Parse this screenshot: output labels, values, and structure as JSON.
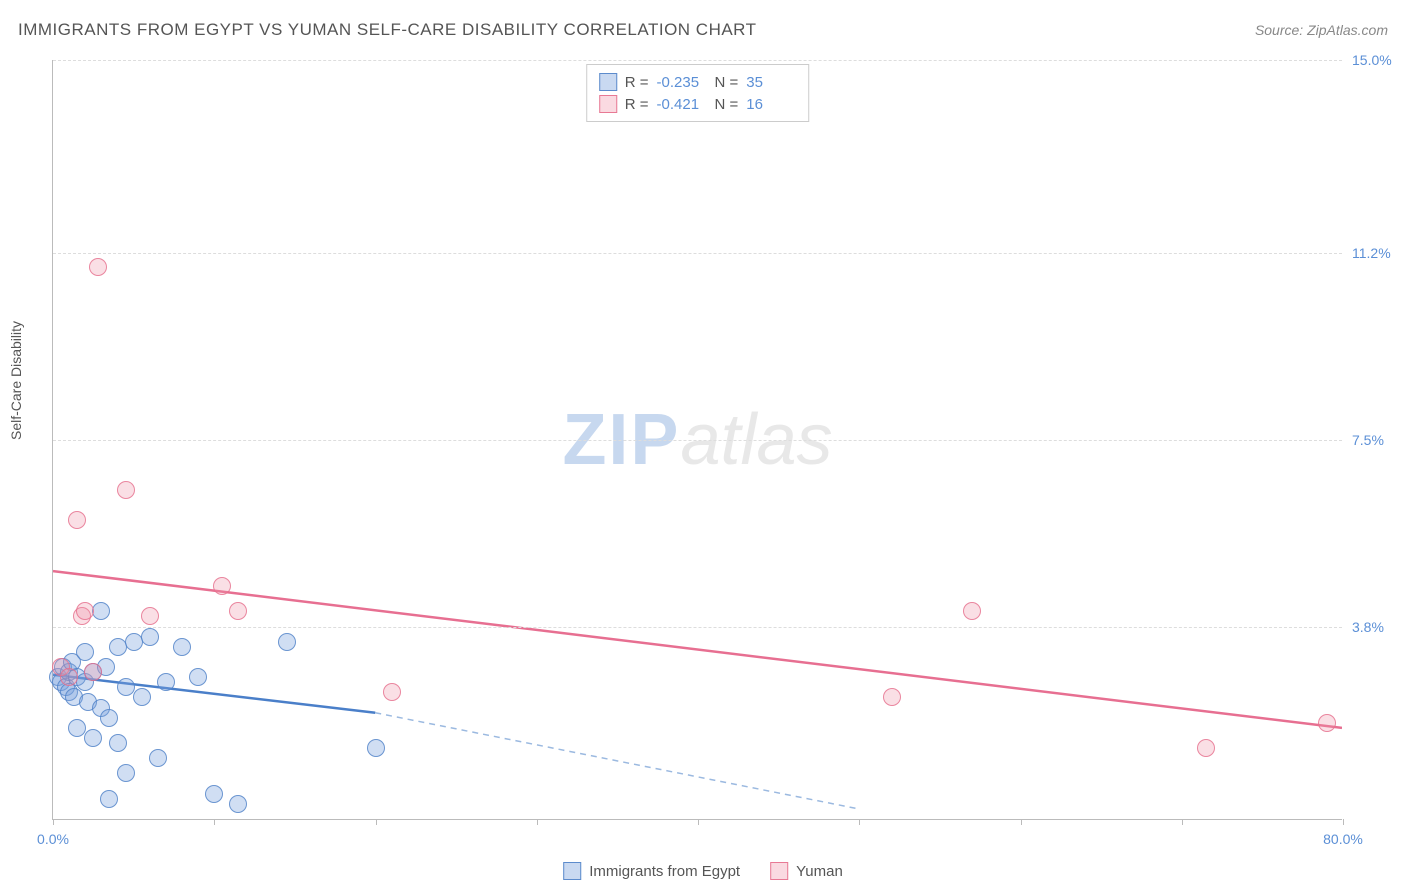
{
  "title": "IMMIGRANTS FROM EGYPT VS YUMAN SELF-CARE DISABILITY CORRELATION CHART",
  "source_label": "Source: ",
  "source_name": "ZipAtlas.com",
  "watermark_zip": "ZIP",
  "watermark_atlas": "atlas",
  "chart": {
    "type": "scatter",
    "ylabel": "Self-Care Disability",
    "xlim": [
      0,
      80
    ],
    "ylim": [
      0,
      15
    ],
    "x_tick_positions": [
      0,
      10,
      20,
      30,
      40,
      50,
      60,
      70,
      80
    ],
    "x_tick_labels_shown": {
      "0": "0.0%",
      "80": "80.0%"
    },
    "y_gridlines": [
      3.8,
      7.5,
      11.2,
      15.0
    ],
    "y_tick_labels": [
      "3.8%",
      "7.5%",
      "11.2%",
      "15.0%"
    ],
    "background_color": "#ffffff",
    "grid_color": "#dddddd",
    "axis_color": "#bbbbbb",
    "tick_label_color": "#5b8fd6",
    "marker_radius": 9,
    "series": [
      {
        "name": "Immigrants from Egypt",
        "color_fill": "rgba(120,160,220,0.35)",
        "color_stroke": "rgba(80,130,200,0.8)",
        "R": "-0.235",
        "N": "35",
        "trend": {
          "x1": 0,
          "y1": 2.85,
          "x2": 20,
          "y2": 2.1,
          "stroke": "#4a7fc9",
          "width": 2.5,
          "dash": "none",
          "ext_x2": 50,
          "ext_y2": 0.2,
          "ext_dash": "6 5",
          "ext_stroke": "#9bb9e0"
        },
        "points": [
          {
            "x": 0.3,
            "y": 2.8
          },
          {
            "x": 0.5,
            "y": 2.7
          },
          {
            "x": 0.6,
            "y": 3.0
          },
          {
            "x": 0.8,
            "y": 2.6
          },
          {
            "x": 1.0,
            "y": 2.9
          },
          {
            "x": 1.0,
            "y": 2.5
          },
          {
            "x": 1.2,
            "y": 3.1
          },
          {
            "x": 1.3,
            "y": 2.4
          },
          {
            "x": 1.5,
            "y": 2.8
          },
          {
            "x": 1.5,
            "y": 1.8
          },
          {
            "x": 2.0,
            "y": 2.7
          },
          {
            "x": 2.0,
            "y": 3.3
          },
          {
            "x": 2.2,
            "y": 2.3
          },
          {
            "x": 2.5,
            "y": 2.9
          },
          {
            "x": 2.5,
            "y": 1.6
          },
          {
            "x": 3.0,
            "y": 4.1
          },
          {
            "x": 3.0,
            "y": 2.2
          },
          {
            "x": 3.3,
            "y": 3.0
          },
          {
            "x": 3.5,
            "y": 2.0
          },
          {
            "x": 3.5,
            "y": 0.4
          },
          {
            "x": 4.0,
            "y": 3.4
          },
          {
            "x": 4.0,
            "y": 1.5
          },
          {
            "x": 4.5,
            "y": 2.6
          },
          {
            "x": 4.5,
            "y": 0.9
          },
          {
            "x": 5.0,
            "y": 3.5
          },
          {
            "x": 5.5,
            "y": 2.4
          },
          {
            "x": 6.0,
            "y": 3.6
          },
          {
            "x": 6.5,
            "y": 1.2
          },
          {
            "x": 7.0,
            "y": 2.7
          },
          {
            "x": 8.0,
            "y": 3.4
          },
          {
            "x": 9.0,
            "y": 2.8
          },
          {
            "x": 10.0,
            "y": 0.5
          },
          {
            "x": 11.5,
            "y": 0.3
          },
          {
            "x": 14.5,
            "y": 3.5
          },
          {
            "x": 20.0,
            "y": 1.4
          }
        ]
      },
      {
        "name": "Yuman",
        "color_fill": "rgba(240,150,170,0.3)",
        "color_stroke": "rgba(230,110,140,0.8)",
        "R": "-0.421",
        "N": "16",
        "trend": {
          "x1": 0,
          "y1": 4.9,
          "x2": 80,
          "y2": 1.8,
          "stroke": "#e76f91",
          "width": 2.5,
          "dash": "none"
        },
        "points": [
          {
            "x": 0.5,
            "y": 3.0
          },
          {
            "x": 1.0,
            "y": 2.8
          },
          {
            "x": 1.5,
            "y": 5.9
          },
          {
            "x": 1.8,
            "y": 4.0
          },
          {
            "x": 2.0,
            "y": 4.1
          },
          {
            "x": 2.5,
            "y": 2.9
          },
          {
            "x": 2.8,
            "y": 10.9
          },
          {
            "x": 4.5,
            "y": 6.5
          },
          {
            "x": 6.0,
            "y": 4.0
          },
          {
            "x": 10.5,
            "y": 4.6
          },
          {
            "x": 11.5,
            "y": 4.1
          },
          {
            "x": 21.0,
            "y": 2.5
          },
          {
            "x": 52.0,
            "y": 2.4
          },
          {
            "x": 57.0,
            "y": 4.1
          },
          {
            "x": 71.5,
            "y": 1.4
          },
          {
            "x": 79.0,
            "y": 1.9
          }
        ]
      }
    ]
  },
  "legend_top": {
    "R_label": "R =",
    "N_label": "N ="
  },
  "legend_bottom": {
    "series1_label": "Immigrants from Egypt",
    "series2_label": "Yuman"
  }
}
